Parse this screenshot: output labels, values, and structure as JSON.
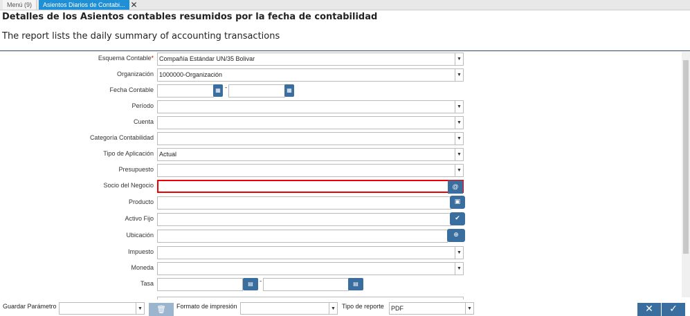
{
  "tabs": [
    {
      "label": "Menú (9)"
    },
    {
      "label": "Asientos Diarios de Contabi..."
    }
  ],
  "header": {
    "title": "Detalles de los Asientos contables resumidos por la fecha de contabilidad",
    "subtitle": "The report lists the daily summary of accounting transactions"
  },
  "form": {
    "esquema": {
      "label": "Esquema Contable",
      "required": "*",
      "value": "Compañía Estándar UN/35 Bolivar"
    },
    "organizacion": {
      "label": "Organización",
      "value": "1000000-Organización"
    },
    "fecha": {
      "label": "Fecha Contable",
      "sep": "-"
    },
    "periodo": {
      "label": "Período"
    },
    "cuenta": {
      "label": "Cuenta"
    },
    "categoria": {
      "label": "Categoría Contabilidad"
    },
    "tipo": {
      "label": "Tipo de Aplicación",
      "value": "Actual"
    },
    "presupuesto": {
      "label": "Presupuesto"
    },
    "socio": {
      "label": "Socio del Negocio"
    },
    "producto": {
      "label": "Producto"
    },
    "activo": {
      "label": "Activo Fijo"
    },
    "ubicacion": {
      "label": "Ubicación"
    },
    "impuesto": {
      "label": "Impuesto"
    },
    "moneda": {
      "label": "Moneda"
    },
    "tasa": {
      "label": "Tasa",
      "sep": "-"
    }
  },
  "bottom": {
    "guardar": "Guardar Parámetro",
    "formato": "Formato de impresión",
    "tipo": "Tipo de reporte",
    "tipo_value": "PDF"
  },
  "colors": {
    "accent": "#3a6e9f",
    "tab_active": "#1f8fd6",
    "error": "#e00000"
  }
}
